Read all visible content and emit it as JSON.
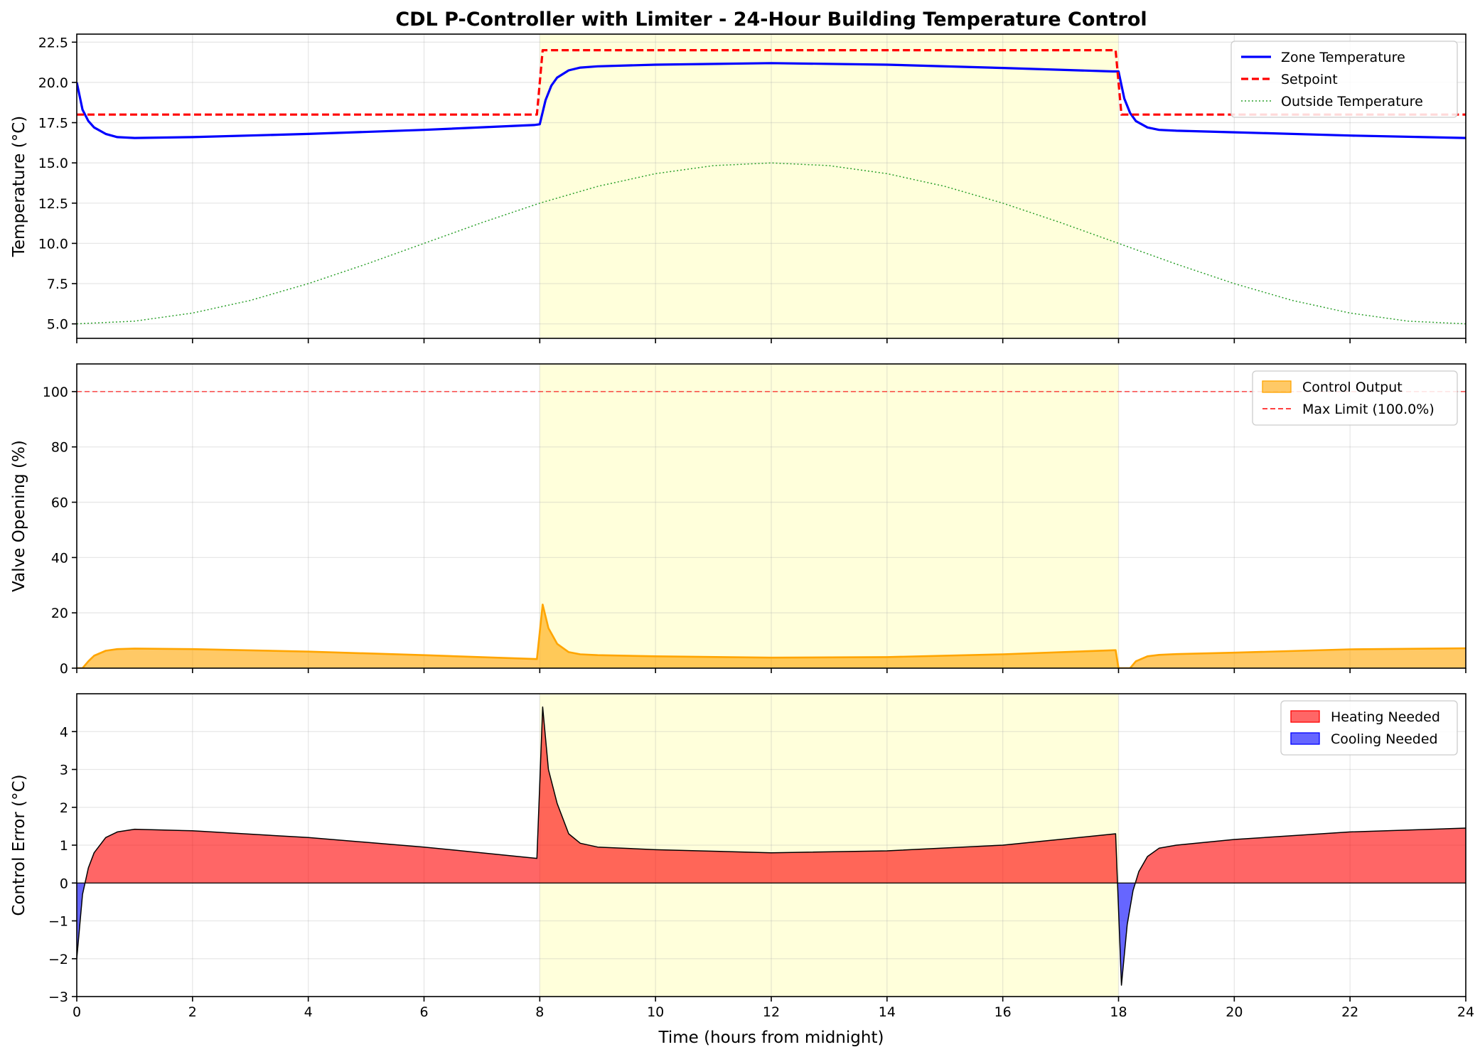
{
  "figure": {
    "title": "CDL P-Controller with Limiter - 24-Hour Building Temperature Control",
    "xlabel": "Time (hours from midnight)"
  },
  "occupied_period": {
    "start": 8,
    "end": 18,
    "color": "#ffffcc"
  },
  "chart_data": [
    {
      "type": "line",
      "ylabel": "Temperature (°C)",
      "xlim": [
        0,
        24
      ],
      "ylim": [
        4.1,
        23.0
      ],
      "grid": true,
      "legend_position": "top-right",
      "xticks": [
        "0",
        "2",
        "4",
        "6",
        "8",
        "10",
        "12",
        "14",
        "16",
        "18",
        "20",
        "22",
        "24"
      ],
      "yticks": [
        "5.0",
        "7.5",
        "10.0",
        "12.5",
        "15.0",
        "17.5",
        "20.0",
        "22.5"
      ],
      "series": [
        {
          "name": "Zone Temperature",
          "color": "#0000ff",
          "style": "solid",
          "x": [
            0,
            0.1,
            0.2,
            0.3,
            0.5,
            0.7,
            1,
            2,
            4,
            6,
            7.9,
            8.0,
            8.1,
            8.2,
            8.3,
            8.5,
            8.7,
            9,
            10,
            12,
            14,
            16,
            17.9,
            18.0,
            18.1,
            18.2,
            18.3,
            18.5,
            18.7,
            19,
            20,
            22,
            24
          ],
          "y": [
            20.0,
            18.3,
            17.6,
            17.2,
            16.8,
            16.6,
            16.55,
            16.6,
            16.8,
            17.05,
            17.35,
            17.4,
            18.9,
            19.8,
            20.3,
            20.75,
            20.92,
            21.0,
            21.1,
            21.2,
            21.1,
            20.9,
            20.68,
            20.68,
            19.0,
            18.1,
            17.6,
            17.2,
            17.05,
            17.0,
            16.9,
            16.7,
            16.55
          ]
        },
        {
          "name": "Setpoint",
          "color": "#ff0000",
          "style": "dashed",
          "x": [
            0,
            7.95,
            8.05,
            17.95,
            18.05,
            24
          ],
          "y": [
            18,
            18,
            22,
            22,
            18,
            18
          ]
        },
        {
          "name": "Outside Temperature",
          "color": "#2ca02c",
          "style": "dotted",
          "x": [
            0,
            1,
            2,
            3,
            4,
            5,
            6,
            7,
            8,
            9,
            10,
            11,
            12,
            13,
            14,
            15,
            16,
            17,
            18,
            19,
            20,
            21,
            22,
            23,
            24
          ],
          "y": [
            5.0,
            5.17,
            5.67,
            6.46,
            7.5,
            8.71,
            10.0,
            11.29,
            12.5,
            13.54,
            14.33,
            14.83,
            15.0,
            14.83,
            14.33,
            13.54,
            12.5,
            11.29,
            10.0,
            8.71,
            7.5,
            6.46,
            5.67,
            5.17,
            5.0
          ]
        }
      ]
    },
    {
      "type": "area",
      "ylabel": "Valve Opening (%)",
      "xlim": [
        0,
        24
      ],
      "ylim": [
        0,
        110
      ],
      "grid": true,
      "legend_position": "top-right",
      "xticks": [
        "0",
        "2",
        "4",
        "6",
        "8",
        "10",
        "12",
        "14",
        "16",
        "18",
        "20",
        "22",
        "24"
      ],
      "yticks": [
        "0",
        "20",
        "40",
        "60",
        "80",
        "100"
      ],
      "series": [
        {
          "name": "Control Output",
          "color": "#ffa500",
          "x": [
            0,
            0.1,
            0.2,
            0.3,
            0.5,
            0.7,
            1,
            2,
            4,
            6,
            7.95,
            8.05,
            8.15,
            8.3,
            8.5,
            8.7,
            9,
            10,
            12,
            14,
            16,
            17.95,
            18.0,
            18.1,
            18.2,
            18.3,
            18.5,
            18.7,
            19,
            20,
            22,
            24
          ],
          "y": [
            0,
            0,
            2.5,
            4.5,
            6.3,
            6.9,
            7.1,
            6.9,
            6.0,
            4.7,
            3.3,
            23.0,
            14.5,
            8.8,
            5.8,
            5.0,
            4.7,
            4.3,
            3.8,
            4.0,
            5.0,
            6.5,
            0,
            0,
            0,
            2.5,
            4.3,
            4.8,
            5.1,
            5.6,
            6.8,
            7.2
          ]
        },
        {
          "name": "Max Limit (100.0%)",
          "color": "#ff0000",
          "style": "dashed",
          "x": [
            0,
            24
          ],
          "y": [
            100,
            100
          ]
        }
      ]
    },
    {
      "type": "area",
      "ylabel": "Control Error (°C)",
      "xlim": [
        0,
        24
      ],
      "ylim": [
        -3,
        5
      ],
      "grid": true,
      "legend_position": "top-right",
      "xticks": [
        "0",
        "2",
        "4",
        "6",
        "8",
        "10",
        "12",
        "14",
        "16",
        "18",
        "20",
        "22",
        "24"
      ],
      "yticks": [
        "−3",
        "−2",
        "−1",
        "0",
        "1",
        "2",
        "3",
        "4"
      ],
      "series": [
        {
          "name": "Heating Needed",
          "color": "#ff0000",
          "fill": "error > 0"
        },
        {
          "name": "Cooling Needed",
          "color": "#0000ff",
          "fill": "error < 0"
        }
      ],
      "error": {
        "x": [
          0,
          0.1,
          0.2,
          0.3,
          0.5,
          0.7,
          1,
          2,
          4,
          6,
          7.95,
          8.05,
          8.15,
          8.3,
          8.5,
          8.7,
          9,
          10,
          12,
          14,
          16,
          17.95,
          18.05,
          18.15,
          18.25,
          18.35,
          18.5,
          18.7,
          19,
          20,
          22,
          24
        ],
        "y": [
          -2.0,
          -0.3,
          0.4,
          0.8,
          1.2,
          1.35,
          1.42,
          1.38,
          1.2,
          0.95,
          0.65,
          4.65,
          3.0,
          2.1,
          1.3,
          1.05,
          0.95,
          0.88,
          0.8,
          0.85,
          1.0,
          1.3,
          -2.7,
          -1.1,
          -0.2,
          0.3,
          0.7,
          0.92,
          1.0,
          1.15,
          1.35,
          1.45
        ]
      }
    }
  ]
}
